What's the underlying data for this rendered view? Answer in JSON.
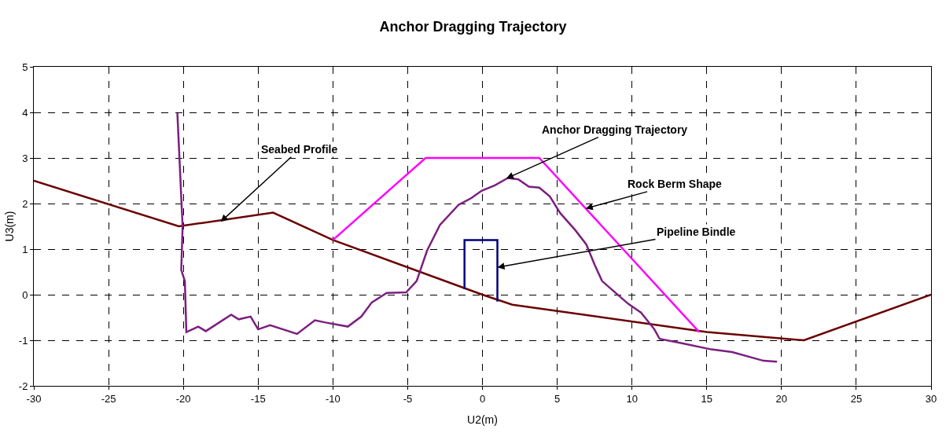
{
  "chart_data": {
    "type": "line",
    "title": "Anchor Dragging Trajectory",
    "xlabel": "U2(m)",
    "ylabel": "U3(m)",
    "xlim": [
      -30,
      30
    ],
    "xticks": [
      -30,
      -25,
      -20,
      -15,
      -10,
      -5,
      0,
      5,
      10,
      15,
      20,
      25,
      30
    ],
    "ylim": [
      -2,
      5
    ],
    "yticks": [
      -2,
      -1,
      0,
      1,
      2,
      3,
      4,
      5
    ],
    "grid": true,
    "marker": "none",
    "series": [
      {
        "color": "#6b0000",
        "x": [
          -30,
          -20.3,
          -14,
          -10,
          0,
          2.0,
          15,
          21.5,
          30
        ],
        "values": [
          2.5,
          1.5,
          1.8,
          1.2,
          0,
          -0.22,
          -0.82,
          -1.0,
          0
        ]
      },
      {
        "color": "#ff00ff",
        "x": [
          -10,
          -3.8,
          3.8,
          14.5
        ],
        "values": [
          1.2,
          3.0,
          3.0,
          -0.82
        ]
      },
      {
        "color": "#000080",
        "x": [
          -1.2,
          -1.2,
          1.0,
          1.0
        ],
        "values": [
          0.12,
          1.2,
          1.2,
          -0.15
        ]
      },
      {
        "color": "#7b1f80",
        "x": [
          -20.4,
          -20.05,
          -20.14,
          -19.9,
          -19.8,
          -19.0,
          -18.5,
          -16.8,
          -16.3,
          -15.5,
          -15.0,
          -14.2,
          -12.4,
          -11.2,
          -10.5,
          -9.0,
          -8.1,
          -7.4,
          -6.4,
          -5.1,
          -4.4,
          -3.7,
          -2.84,
          -1.6,
          -0.74,
          -0.06,
          0.83,
          1.7,
          2.4,
          3.1,
          3.8,
          4.5,
          5.2,
          6.2,
          6.95,
          7.5,
          8.0,
          8.9,
          9.75,
          10.6,
          11.5,
          11.85,
          13.4,
          15.3,
          16.7,
          18.8,
          19.7
        ],
        "values": [
          3.98,
          1.5,
          0.54,
          0.3,
          -0.82,
          -0.7,
          -0.8,
          -0.44,
          -0.54,
          -0.48,
          -0.76,
          -0.67,
          -0.86,
          -0.56,
          -0.61,
          -0.7,
          -0.48,
          -0.17,
          0.04,
          0.05,
          0.3,
          0.97,
          1.53,
          1.97,
          2.12,
          2.28,
          2.4,
          2.56,
          2.53,
          2.37,
          2.35,
          2.16,
          1.79,
          1.42,
          1.1,
          0.66,
          0.3,
          0.04,
          -0.2,
          -0.39,
          -0.76,
          -0.97,
          -1.07,
          -1.2,
          -1.26,
          -1.45,
          -1.47
        ]
      }
    ],
    "annotations": [
      {
        "text": "Seabed Profile",
        "x": -17.5,
        "y": 1.6
      },
      {
        "text": "Anchor Dragging Trajectory",
        "x": 1.6,
        "y": 2.55
      },
      {
        "text": "Rock Berm Shape",
        "x": 6.9,
        "y": 1.89
      },
      {
        "text": "Pipeline Bindle",
        "x": 1.0,
        "y": 0.6
      }
    ]
  }
}
